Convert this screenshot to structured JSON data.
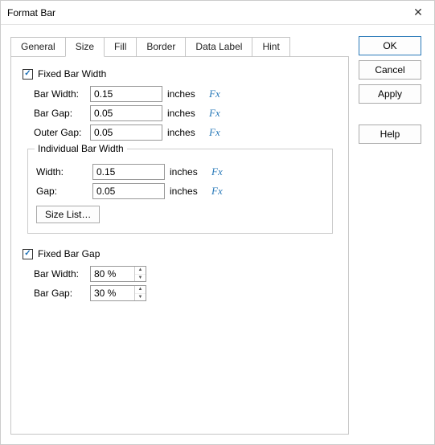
{
  "dialog": {
    "title": "Format Bar",
    "close_icon": "✕"
  },
  "tabs": {
    "items": [
      "General",
      "Size",
      "Fill",
      "Border",
      "Data Label",
      "Hint"
    ],
    "active_index": 1
  },
  "size_tab": {
    "fixed_width": {
      "checkbox_label": "Fixed Bar Width",
      "checked": true,
      "bar_width": {
        "label": "Bar Width:",
        "value": "0.15",
        "unit": "inches"
      },
      "bar_gap": {
        "label": "Bar Gap:",
        "value": "0.05",
        "unit": "inches"
      },
      "outer_gap": {
        "label": "Outer Gap:",
        "value": "0.05",
        "unit": "inches"
      }
    },
    "individual": {
      "legend": "Individual Bar Width",
      "width": {
        "label": "Width:",
        "value": "0.15",
        "unit": "inches"
      },
      "gap": {
        "label": "Gap:",
        "value": "0.05",
        "unit": "inches"
      },
      "size_list_label": "Size List…"
    },
    "fixed_gap": {
      "checkbox_label": "Fixed Bar Gap",
      "checked": true,
      "bar_width": {
        "label": "Bar Width:",
        "value": "80 %"
      },
      "bar_gap": {
        "label": "Bar Gap:",
        "value": "30 %"
      }
    },
    "fx_label": "Fx"
  },
  "buttons": {
    "ok": "OK",
    "cancel": "Cancel",
    "apply": "Apply",
    "help": "Help"
  }
}
